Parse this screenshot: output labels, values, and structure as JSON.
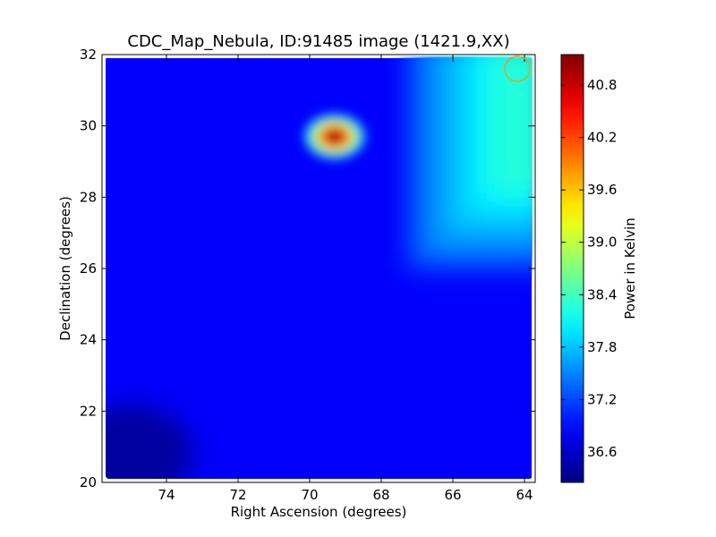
{
  "chart_data": {
    "type": "heatmap",
    "title": "CDC_Map_Nebula, ID:91485 image (1421.9,XX)",
    "xlabel": "Right Ascension (degrees)",
    "ylabel": "Declination (degrees)",
    "xlim": [
      75.8,
      63.7
    ],
    "ylim": [
      20.0,
      32.0
    ],
    "x_ticks": [
      74,
      72,
      70,
      68,
      66,
      64
    ],
    "y_ticks": [
      20,
      22,
      24,
      26,
      28,
      30,
      32
    ],
    "x_tick_labels": [
      "74",
      "72",
      "70",
      "68",
      "66",
      "64"
    ],
    "y_tick_labels": [
      "20",
      "22",
      "24",
      "26",
      "28",
      "30",
      "32"
    ],
    "data_extent": {
      "ra": [
        75.7,
        63.8
      ],
      "dec": [
        20.1,
        31.9
      ]
    },
    "colorbar": {
      "label": "Power in Kelvin",
      "colormap": "jet",
      "vmin": 36.25,
      "vmax": 41.15,
      "ticks": [
        36.6,
        37.2,
        37.8,
        38.4,
        39.0,
        39.6,
        40.2,
        40.8
      ],
      "tick_labels": [
        "36.6",
        "37.2",
        "37.8",
        "38.4",
        "39.0",
        "39.6",
        "40.2",
        "40.8"
      ]
    },
    "field": {
      "base_value": 36.85,
      "features": [
        {
          "kind": "hotspot",
          "ra": 69.3,
          "dec": 29.7,
          "peak": 41.1,
          "width_deg": 0.45
        },
        {
          "kind": "warm_edge",
          "ra_from": 67.0,
          "ra_to": 63.8,
          "dec_from": 26.0,
          "dec_to": 31.9,
          "peak": 38.5
        },
        {
          "kind": "cold_region",
          "ra": 75.0,
          "dec": 20.8,
          "value": 36.4
        }
      ]
    },
    "marker": {
      "shape": "circle",
      "ra": 64.2,
      "dec": 31.6,
      "radius_deg": 0.35,
      "color": "#e0a020"
    }
  }
}
